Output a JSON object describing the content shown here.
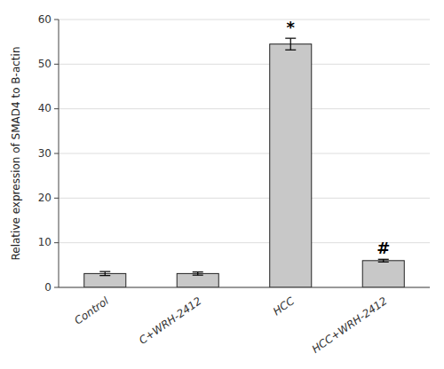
{
  "chart_data": {
    "type": "bar",
    "ylabel": "Relative expression of SMAD4 to B-actin",
    "categories": [
      "Control",
      "C+WRH-2412",
      "HCC",
      "HCC+WRH-2412"
    ],
    "values": [
      3.1,
      3.1,
      54.5,
      6.0
    ],
    "errors": [
      0.45,
      0.35,
      1.3,
      0.3
    ],
    "color": "#c8c8c8",
    "ylim": [
      0,
      60
    ],
    "yticks": [
      0,
      10,
      20,
      30,
      40,
      50,
      60
    ],
    "grid": true,
    "annotations": [
      {
        "text": "*",
        "category": "HCC"
      },
      {
        "text": "#",
        "category": "HCC+WRH-2412"
      }
    ]
  }
}
